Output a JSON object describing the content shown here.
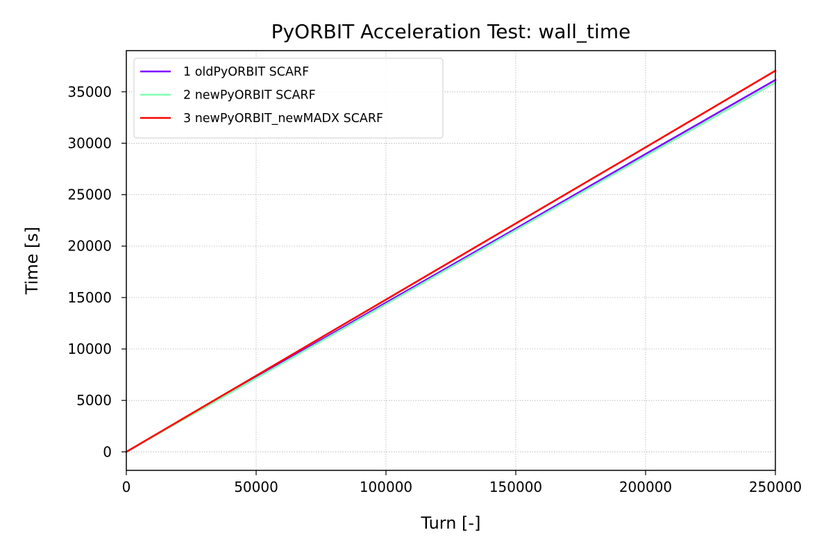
{
  "chart_data": {
    "type": "line",
    "title": "PyORBIT Acceleration Test: wall_time",
    "xlabel": "Turn [-]",
    "ylabel": "Time [s]",
    "xlim": [
      0,
      250000
    ],
    "ylim": [
      -1800,
      39000
    ],
    "xticks": [
      0,
      50000,
      100000,
      150000,
      200000,
      250000
    ],
    "yticks": [
      0,
      5000,
      10000,
      15000,
      20000,
      25000,
      30000,
      35000
    ],
    "grid": true,
    "legend_position": "upper-left",
    "series": [
      {
        "name": "1 oldPyORBIT SCARF",
        "color": "#8000ff",
        "x": [
          0,
          50000,
          100000,
          150000,
          200000,
          250000
        ],
        "y": [
          0,
          7250,
          14500,
          21700,
          28950,
          36150
        ]
      },
      {
        "name": "2 newPyORBIT SCARF",
        "color": "#80ffb4",
        "x": [
          0,
          50000,
          100000,
          150000,
          200000,
          250000
        ],
        "y": [
          0,
          7150,
          14350,
          21550,
          28750,
          35900
        ]
      },
      {
        "name": "3 newPyORBIT_newMADX SCARF",
        "color": "#ff0000",
        "x": [
          0,
          50000,
          100000,
          150000,
          200000,
          250000
        ],
        "y": [
          0,
          7400,
          14800,
          22200,
          29600,
          37050
        ]
      }
    ]
  }
}
